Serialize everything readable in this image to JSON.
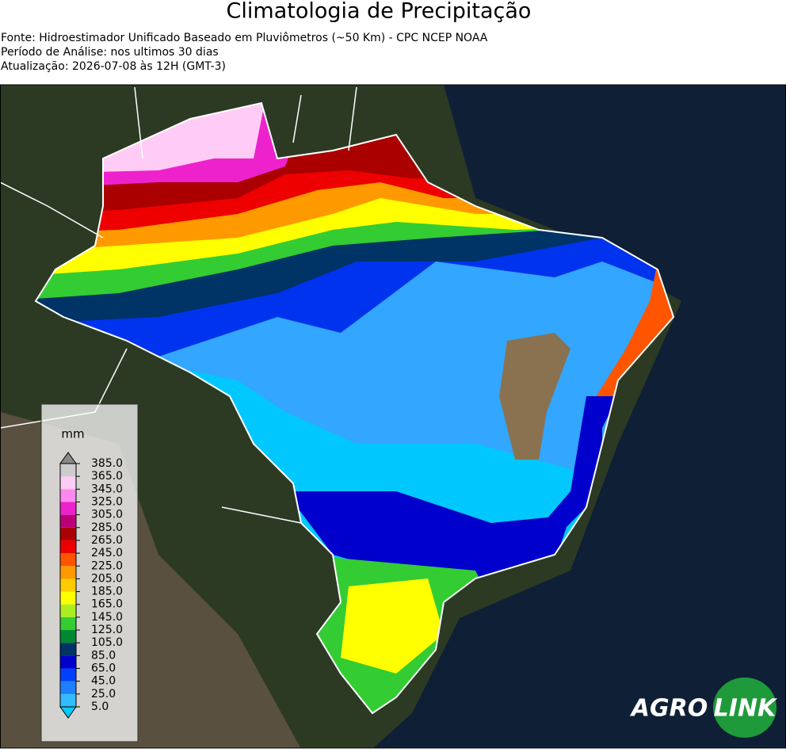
{
  "header": {
    "title": "Climatologia de Precipitação",
    "lines": [
      "Fonte: Hidroestimador Unificado Baseado em Pluviômetros (~50 Km) - CPC NCEP NOAA",
      "Período de Análise: nos ultimos 30 dias",
      "Atualização: 2026-07-08 às 12H (GMT-3)"
    ]
  },
  "legend": {
    "unit": "mm",
    "ticks": [
      {
        "value": 5,
        "label": "5.0"
      },
      {
        "value": 25,
        "label": "25.0"
      },
      {
        "value": 45,
        "label": "45.0"
      },
      {
        "value": 65,
        "label": "65.0"
      },
      {
        "value": 85,
        "label": "85.0"
      },
      {
        "value": 105,
        "label": "105.0"
      },
      {
        "value": 125,
        "label": "125.0"
      },
      {
        "value": 145,
        "label": "145.0"
      },
      {
        "value": 165,
        "label": "165.0"
      },
      {
        "value": 185,
        "label": "185.0"
      },
      {
        "value": 205,
        "label": "205.0"
      },
      {
        "value": 225,
        "label": "225.0"
      },
      {
        "value": 245,
        "label": "245.0"
      },
      {
        "value": 265,
        "label": "265.0"
      },
      {
        "value": 285,
        "label": "285.0"
      },
      {
        "value": 305,
        "label": "305.0"
      },
      {
        "value": 325,
        "label": "325.0"
      },
      {
        "value": 345,
        "label": "345.0"
      },
      {
        "value": 365,
        "label": "365.0"
      },
      {
        "value": 385,
        "label": "385.0"
      }
    ],
    "colors": [
      "#33bbff",
      "#1e7fff",
      "#0040ff",
      "#0000cc",
      "#003366",
      "#008833",
      "#33cc33",
      "#aaee22",
      "#ffff00",
      "#ffcc00",
      "#ff9900",
      "#ff5500",
      "#ee0000",
      "#aa0000",
      "#bb0077",
      "#ee22cc",
      "#ff88ee",
      "#ffccf5",
      "#cccccc"
    ],
    "under_color": "#00ccff",
    "over_color": "#888888"
  },
  "logo": [
    "AGRO",
    "LINK"
  ]
}
